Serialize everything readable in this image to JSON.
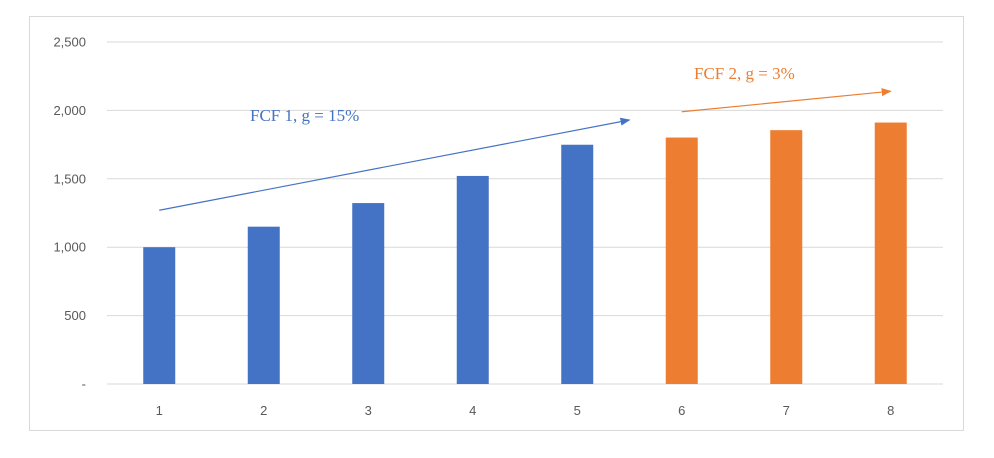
{
  "chart_data": {
    "type": "bar",
    "categories": [
      "1",
      "2",
      "3",
      "4",
      "5",
      "6",
      "7",
      "8"
    ],
    "values": [
      1000,
      1150,
      1322.5,
      1520.9,
      1749.0,
      1801.5,
      1855.5,
      1911.2
    ],
    "bar_colors": [
      "#4472c4",
      "#4472c4",
      "#4472c4",
      "#4472c4",
      "#4472c4",
      "#ed7d31",
      "#ed7d31",
      "#ed7d31"
    ],
    "y_tick_labels": [
      "-",
      "500",
      "1,000",
      "1,500",
      "2,000",
      "2,500"
    ],
    "y_ticks": [
      0,
      500,
      1000,
      1500,
      2000,
      2500
    ],
    "ylim": [
      0,
      2500
    ],
    "grid": true,
    "legend": "none",
    "annotations": [
      {
        "text": "FCF 1, g = 15%",
        "color": "#4472c4",
        "arrow_from": [
          0.5,
          1270
        ],
        "arrow_to": [
          5.0,
          1930
        ]
      },
      {
        "text": "FCF 2, g = 3%",
        "color": "#ed7d31",
        "arrow_from": [
          5.5,
          1990
        ],
        "arrow_to": [
          7.5,
          2140
        ]
      }
    ]
  }
}
